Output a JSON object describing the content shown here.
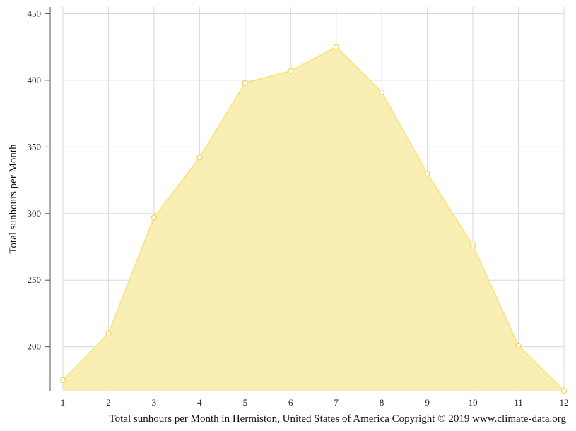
{
  "chart_data": {
    "type": "area",
    "x": [
      1,
      2,
      3,
      4,
      5,
      6,
      7,
      8,
      9,
      10,
      11,
      12
    ],
    "series": [
      {
        "values": [
          175,
          210,
          297,
          342,
          398,
          407,
          425,
          391,
          330,
          276,
          201,
          167
        ]
      }
    ],
    "xlabel": "",
    "ylabel": "Total sunhours per Month",
    "caption": "Total sunhours per Month in Hermiston, United States of America Copyright © 2019 www.climate-data.org",
    "xlim": [
      1,
      12
    ],
    "ylim": [
      167,
      455
    ],
    "yticks": [
      200,
      250,
      300,
      350,
      400,
      450
    ],
    "xticks": [
      1,
      2,
      3,
      4,
      5,
      6,
      7,
      8,
      9,
      10,
      11,
      12
    ],
    "grid": true,
    "colors": {
      "fill": "#f9eeb0",
      "line": "#f7e48e",
      "marker_fill": "#ffffff",
      "marker_stroke": "#f0d55a",
      "grid": "#d8d8d8",
      "axis": "#555555"
    }
  }
}
